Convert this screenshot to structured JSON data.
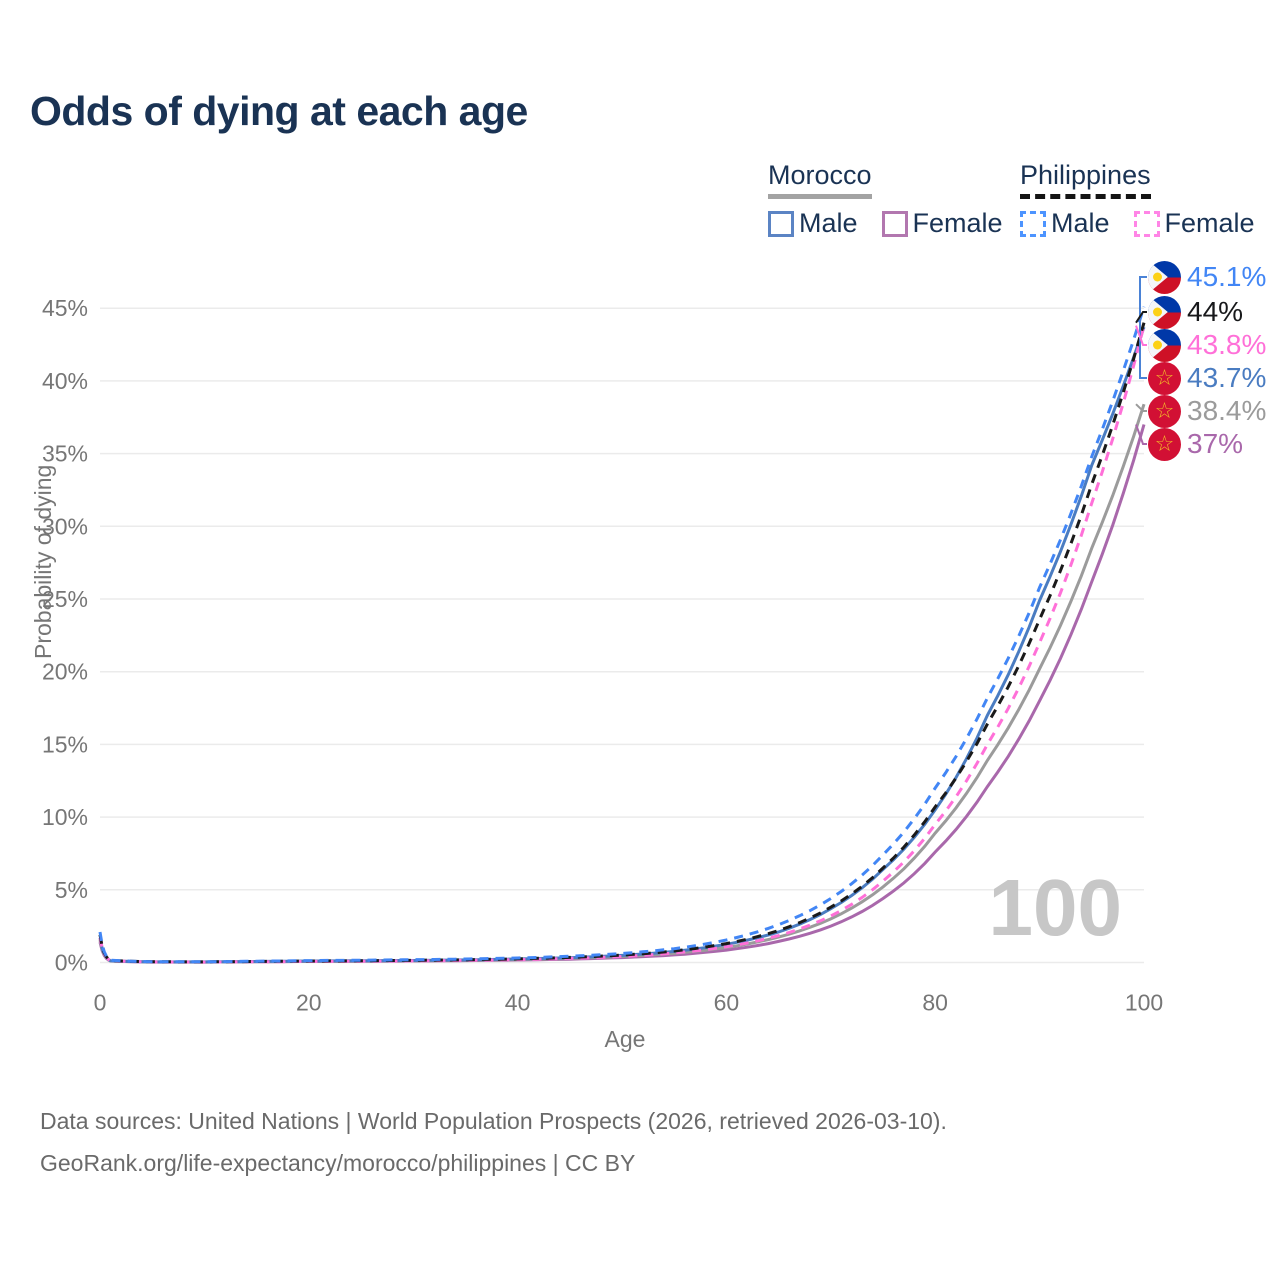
{
  "title": "Odds of dying at each age",
  "watermark": "100",
  "legend": {
    "morocco": {
      "label": "Morocco",
      "male": "Male",
      "female": "Female"
    },
    "philippines": {
      "label": "Philippines",
      "male": "Male",
      "female": "Female"
    }
  },
  "footer": {
    "line1": "Data sources: United Nations | World Population Prospects (2026, retrieved 2026-03-10).",
    "line2": "GeoRank.org/life-expectancy/morocco/philippines | CC BY"
  },
  "chart_data": {
    "type": "line",
    "title": "Odds of dying at each age",
    "xlabel": "Age",
    "ylabel": "Probability of dying",
    "xlim": [
      0,
      100
    ],
    "ylim": [
      0,
      45.5
    ],
    "x_ticks": [
      0,
      20,
      40,
      60,
      80,
      100
    ],
    "y_ticks": [
      0,
      5,
      10,
      15,
      20,
      25,
      30,
      35,
      40,
      45
    ],
    "y_tick_suffix": "%",
    "grid": "horizontal",
    "legend_position": "top-right",
    "colors": {
      "morocco_male": "#4a7cc1",
      "morocco_female": "#a968ab",
      "morocco_both": "#9b9b9b",
      "philippines_male": "#4286f5",
      "philippines_female": "#ff70d8",
      "philippines_both": "#1a1a1a",
      "gridline": "#ebebeb",
      "tick_text": "#767676"
    },
    "anchor_ages": [
      0,
      1,
      5,
      10,
      15,
      20,
      25,
      30,
      35,
      40,
      45,
      50,
      55,
      60,
      65,
      70,
      75,
      80,
      85,
      90,
      95,
      100
    ],
    "series": [
      {
        "name": "Philippines Male",
        "country": "philippines",
        "sex": "male",
        "color": "#4286f5",
        "line": "dashed",
        "flag": "ph",
        "end_label": "45.1%",
        "end_value": 45.1,
        "values": [
          2.1,
          0.16,
          0.05,
          0.05,
          0.09,
          0.13,
          0.16,
          0.19,
          0.24,
          0.31,
          0.43,
          0.62,
          0.95,
          1.55,
          2.6,
          4.4,
          7.4,
          12.0,
          18.2,
          25.8,
          34.8,
          45.1
        ]
      },
      {
        "name": "Philippines Both sexes",
        "country": "philippines",
        "sex": "both",
        "color": "#1a1a1a",
        "line": "dashed",
        "flag": "ph",
        "end_label": "44%",
        "end_value": 44.0,
        "values": [
          1.9,
          0.14,
          0.05,
          0.04,
          0.07,
          0.1,
          0.12,
          0.15,
          0.19,
          0.25,
          0.35,
          0.51,
          0.79,
          1.3,
          2.2,
          3.8,
          6.5,
          10.7,
          16.4,
          23.6,
          32.9,
          44.0
        ]
      },
      {
        "name": "Philippines Female",
        "country": "philippines",
        "sex": "female",
        "color": "#ff70d8",
        "line": "dashed",
        "flag": "ph",
        "end_label": "43.8%",
        "end_value": 43.8,
        "values": [
          1.7,
          0.13,
          0.04,
          0.03,
          0.05,
          0.07,
          0.09,
          0.11,
          0.15,
          0.2,
          0.28,
          0.41,
          0.65,
          1.08,
          1.85,
          3.2,
          5.6,
          9.5,
          15.0,
          22.0,
          31.6,
          43.8
        ]
      },
      {
        "name": "Morocco Male",
        "country": "morocco",
        "sex": "male",
        "color": "#4a7cc1",
        "line": "solid",
        "flag": "ma",
        "end_label": "43.7%",
        "end_value": 43.7,
        "values": [
          1.7,
          0.12,
          0.04,
          0.04,
          0.07,
          0.1,
          0.12,
          0.14,
          0.18,
          0.24,
          0.33,
          0.49,
          0.76,
          1.25,
          2.1,
          3.7,
          6.4,
          10.5,
          17.0,
          24.9,
          34.2,
          43.7
        ]
      },
      {
        "name": "Morocco Both sexes",
        "country": "morocco",
        "sex": "both",
        "color": "#9b9b9b",
        "line": "solid",
        "flag": "ma",
        "end_label": "38.4%",
        "end_value": 38.4,
        "values": [
          1.55,
          0.11,
          0.04,
          0.03,
          0.06,
          0.08,
          0.1,
          0.12,
          0.15,
          0.2,
          0.28,
          0.41,
          0.63,
          1.03,
          1.75,
          3.0,
          5.2,
          8.9,
          13.9,
          20.2,
          28.5,
          38.4
        ]
      },
      {
        "name": "Morocco Female",
        "country": "morocco",
        "sex": "female",
        "color": "#a968ab",
        "line": "solid",
        "flag": "ma",
        "end_label": "37%",
        "end_value": 37.0,
        "values": [
          1.4,
          0.1,
          0.03,
          0.03,
          0.05,
          0.07,
          0.08,
          0.1,
          0.13,
          0.17,
          0.23,
          0.34,
          0.52,
          0.85,
          1.45,
          2.5,
          4.4,
          7.6,
          12.1,
          18.0,
          26.2,
          37.0
        ]
      }
    ]
  }
}
